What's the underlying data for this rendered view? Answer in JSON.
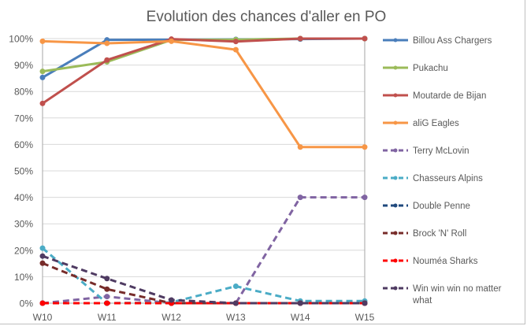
{
  "chart_data": {
    "type": "line",
    "title": "Evolution des chances d'aller en PO",
    "xlabel": "",
    "ylabel": "",
    "ylim": [
      0,
      100
    ],
    "y_ticks": [
      "0%",
      "10%",
      "20%",
      "30%",
      "40%",
      "50%",
      "60%",
      "70%",
      "80%",
      "90%",
      "100%"
    ],
    "categories": [
      "W10",
      "W11",
      "W12",
      "W13",
      "W14",
      "W15"
    ],
    "grid": true,
    "legend_position": "right",
    "series": [
      {
        "name": "Billou Ass Chargers",
        "color": "#4a7ebb",
        "dashed": false,
        "values": [
          85.3,
          99.5,
          99.6,
          99.7,
          99.8,
          100
        ]
      },
      {
        "name": "Pukachu",
        "color": "#9bbb59",
        "dashed": false,
        "values": [
          87.6,
          91.2,
          99.5,
          99.6,
          100,
          100
        ]
      },
      {
        "name": "Moutarde de Bijan",
        "color": "#c0504d",
        "dashed": false,
        "values": [
          75.5,
          91.9,
          99.8,
          98.9,
          100,
          100
        ]
      },
      {
        "name": "aliG Eagles",
        "color": "#f79646",
        "dashed": false,
        "values": [
          99,
          98.2,
          99,
          95.8,
          59,
          59
        ]
      },
      {
        "name": "Terry McLovin",
        "color": "#8064a2",
        "dashed": true,
        "values": [
          0,
          2.5,
          0,
          0,
          40,
          40
        ]
      },
      {
        "name": "Chasseurs Alpins",
        "color": "#4bacc6",
        "dashed": true,
        "values": [
          20.8,
          0,
          0.3,
          6.4,
          0.8,
          0.8
        ]
      },
      {
        "name": "Double Penne",
        "color": "#1f497d",
        "dashed": true,
        "values": [
          0,
          0,
          0,
          0,
          0,
          0
        ]
      },
      {
        "name": "Brock 'N' Roll",
        "color": "#772c2a",
        "dashed": true,
        "values": [
          15.1,
          5.3,
          0,
          0,
          0,
          0
        ]
      },
      {
        "name": "Nouméa Sharks",
        "color": "#ff0000",
        "dashed": true,
        "values": [
          0,
          0,
          0,
          0,
          0,
          0
        ]
      },
      {
        "name": "Win win win no matter what",
        "color": "#4f3b62",
        "dashed": true,
        "values": [
          17.8,
          9.3,
          1.2,
          0,
          0,
          0
        ]
      }
    ]
  }
}
